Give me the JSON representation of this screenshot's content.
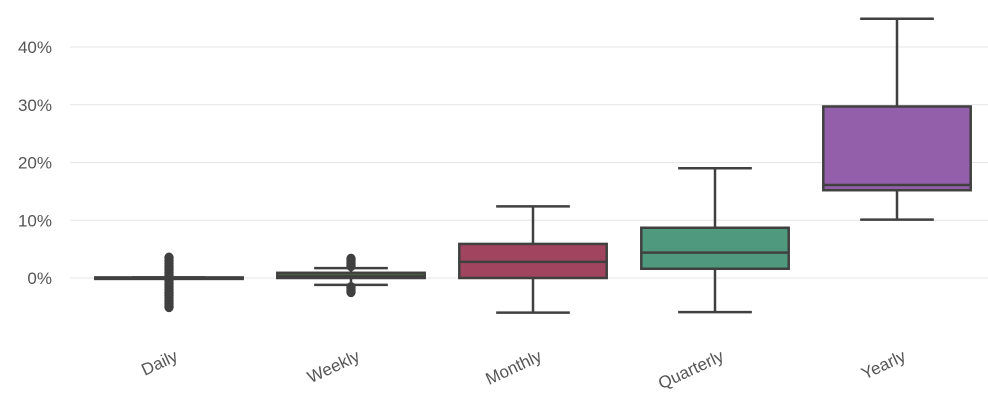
{
  "chart_data": {
    "type": "box",
    "title": "",
    "xlabel": "",
    "ylabel": "",
    "ylim": [
      -0.1,
      0.46
    ],
    "yticks": [
      0,
      0.1,
      0.2,
      0.3,
      0.4
    ],
    "ytick_labels": [
      "0%",
      "10%",
      "20%",
      "30%",
      "40%"
    ],
    "grid": true,
    "categories": [
      "Daily",
      "Weekly",
      "Monthly",
      "Quarterly",
      "Yearly"
    ],
    "colors": [
      "#3a6aa0",
      "#5a8a3e",
      "#a0445f",
      "#4f9a7f",
      "#935eaa"
    ],
    "boxes": [
      {
        "whisker_low": -0.001,
        "q1": -0.001,
        "median": 0.0,
        "q3": 0.001,
        "whisker_high": 0.001,
        "outliers": [
          0.035,
          0.03,
          0.025,
          0.02,
          0.015,
          0.01,
          0.005,
          -0.005,
          -0.01,
          -0.015,
          -0.02,
          -0.025,
          -0.03,
          -0.035,
          -0.04,
          -0.045,
          -0.05
        ]
      },
      {
        "whisker_low": -0.012,
        "q1": 0.0,
        "median": 0.004,
        "q3": 0.009,
        "whisker_high": 0.017,
        "outliers": [
          0.033,
          0.029,
          0.025,
          0.021,
          -0.016,
          -0.02,
          -0.024
        ]
      },
      {
        "whisker_low": -0.06,
        "q1": 0.0,
        "median": 0.028,
        "q3": 0.059,
        "whisker_high": 0.124,
        "outliers": []
      },
      {
        "whisker_low": -0.059,
        "q1": 0.016,
        "median": 0.044,
        "q3": 0.087,
        "whisker_high": 0.19,
        "outliers": []
      },
      {
        "whisker_low": 0.101,
        "q1": 0.152,
        "median": 0.161,
        "q3": 0.297,
        "whisker_high": 0.449,
        "outliers": []
      }
    ]
  }
}
